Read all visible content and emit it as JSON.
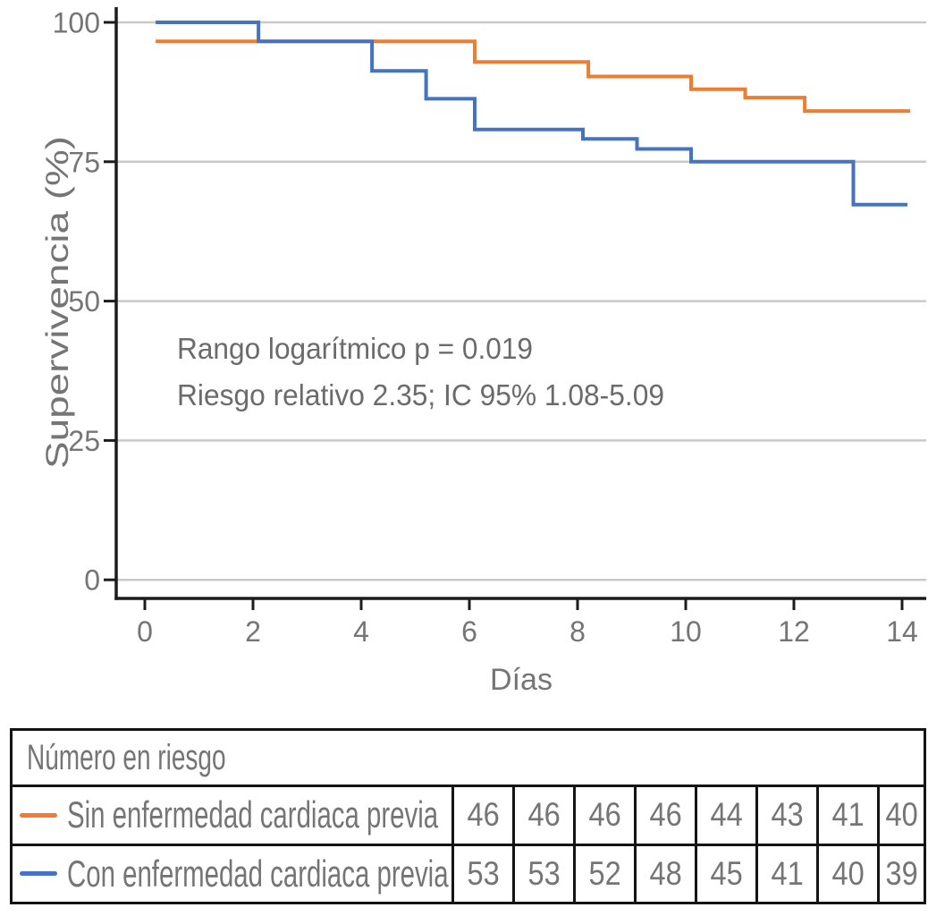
{
  "chart_data": {
    "type": "line",
    "subtype": "kaplan-meier-step",
    "title": "",
    "xlabel": "Días",
    "ylabel": "Supervivencia (%)",
    "xlim": [
      0,
      14.5
    ],
    "ylim": [
      0,
      100
    ],
    "xticks": [
      0,
      2,
      4,
      6,
      8,
      10,
      12,
      14
    ],
    "yticks": [
      0,
      25,
      50,
      75,
      100
    ],
    "grid": "horizontal",
    "annotations": [
      "Rango logarítmico p = 0.019",
      "Riesgo relativo 2.35; IC 95% 1.08-5.09"
    ],
    "series": [
      {
        "name": "Sin enfermedad cardiaca previa",
        "color": "#ED7D31",
        "steps": [
          [
            0.2,
            96.6
          ],
          [
            6.1,
            92.9
          ],
          [
            8.2,
            90.3
          ],
          [
            10.1,
            88.0
          ],
          [
            11.1,
            86.5
          ],
          [
            12.2,
            84.1
          ]
        ],
        "end_x": 14.15
      },
      {
        "name": "Con enfermedad cardiaca previa",
        "color": "#4472C4",
        "steps": [
          [
            0.2,
            100
          ],
          [
            2.1,
            96.6
          ],
          [
            4.2,
            91.3
          ],
          [
            5.2,
            86.3
          ],
          [
            6.1,
            80.8
          ],
          [
            8.1,
            79.1
          ],
          [
            9.1,
            77.3
          ],
          [
            10.1,
            75.0
          ],
          [
            13.1,
            67.3
          ]
        ],
        "end_x": 14.1
      }
    ]
  },
  "risk_table": {
    "title": "Número en riesgo",
    "rows": [
      {
        "label": "Sin enfermedad cardiaca previa",
        "color": "#ED7D31",
        "values": [
          "46",
          "46",
          "46",
          "46",
          "44",
          "43",
          "41",
          "40"
        ]
      },
      {
        "label": "Con enfermedad cardiaca previa",
        "color": "#4472C4",
        "values": [
          "53",
          "53",
          "52",
          "48",
          "45",
          "41",
          "40",
          "39"
        ]
      }
    ]
  },
  "colors": {
    "orange": "#ED7D31",
    "blue": "#4472C4",
    "grid": "#C9C9C9",
    "axis": "#1C1C1C",
    "text_gray": "#757575",
    "annotation_gray": "#6B6B6B",
    "table_border": "#141414"
  }
}
